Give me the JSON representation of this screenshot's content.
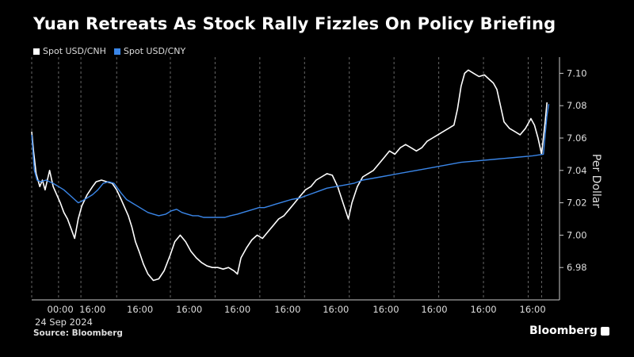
{
  "chart_data": {
    "type": "line",
    "title": "Yuan Retreats As Stock Rally Fizzles On Policy Briefing",
    "ylabel": "Per Dollar",
    "ylim": [
      6.96,
      7.11
    ],
    "y_ticks": [
      "6.98",
      "7.00",
      "7.02",
      "7.04",
      "7.06",
      "7.08",
      "7.10"
    ],
    "x_ticks": [
      "00:00",
      "16:00",
      "16:00",
      "16:00",
      "16:00",
      "16:00",
      "16:00",
      "16:00",
      "16:00",
      "16:00",
      "16:00"
    ],
    "x_date_label": "24 Sep 2024",
    "grid": true,
    "legend_position": "top-left",
    "series": [
      {
        "name": "Spot USD/CNH",
        "color": "#ffffff",
        "points": [
          [
            0,
            7.064
          ],
          [
            0.02,
            7.052
          ],
          [
            0.05,
            7.038
          ],
          [
            0.09,
            7.03
          ],
          [
            0.12,
            7.034
          ],
          [
            0.15,
            7.028
          ],
          [
            0.2,
            7.04
          ],
          [
            0.24,
            7.03
          ],
          [
            0.28,
            7.025
          ],
          [
            0.32,
            7.02
          ],
          [
            0.36,
            7.014
          ],
          [
            0.4,
            7.01
          ],
          [
            0.44,
            7.004
          ],
          [
            0.48,
            6.998
          ],
          [
            0.52,
            7.01
          ],
          [
            0.56,
            7.018
          ],
          [
            0.62,
            7.025
          ],
          [
            0.68,
            7.03
          ],
          [
            0.72,
            7.033
          ],
          [
            0.78,
            7.034
          ],
          [
            0.84,
            7.033
          ],
          [
            0.9,
            7.032
          ],
          [
            0.95,
            7.028
          ],
          [
            1.0,
            7.022
          ],
          [
            1.04,
            7.017
          ],
          [
            1.08,
            7.012
          ],
          [
            1.12,
            7.005
          ],
          [
            1.16,
            6.996
          ],
          [
            1.2,
            6.99
          ],
          [
            1.25,
            6.982
          ],
          [
            1.3,
            6.976
          ],
          [
            1.36,
            6.972
          ],
          [
            1.42,
            6.973
          ],
          [
            1.48,
            6.978
          ],
          [
            1.55,
            6.988
          ],
          [
            1.6,
            6.996
          ],
          [
            1.66,
            7.0
          ],
          [
            1.72,
            6.996
          ],
          [
            1.78,
            6.99
          ],
          [
            1.84,
            6.986
          ],
          [
            1.9,
            6.983
          ],
          [
            1.96,
            6.981
          ],
          [
            2.02,
            6.98
          ],
          [
            2.08,
            6.98
          ],
          [
            2.14,
            6.979
          ],
          [
            2.2,
            6.98
          ],
          [
            2.26,
            6.978
          ],
          [
            2.3,
            6.976
          ],
          [
            2.34,
            6.986
          ],
          [
            2.4,
            6.992
          ],
          [
            2.46,
            6.997
          ],
          [
            2.52,
            7.0
          ],
          [
            2.58,
            6.998
          ],
          [
            2.64,
            7.002
          ],
          [
            2.7,
            7.006
          ],
          [
            2.76,
            7.01
          ],
          [
            2.82,
            7.012
          ],
          [
            2.88,
            7.016
          ],
          [
            2.94,
            7.02
          ],
          [
            3.0,
            7.024
          ],
          [
            3.06,
            7.028
          ],
          [
            3.12,
            7.03
          ],
          [
            3.18,
            7.034
          ],
          [
            3.24,
            7.036
          ],
          [
            3.3,
            7.038
          ],
          [
            3.36,
            7.037
          ],
          [
            3.42,
            7.03
          ],
          [
            3.48,
            7.02
          ],
          [
            3.54,
            7.01
          ],
          [
            3.58,
            7.02
          ],
          [
            3.64,
            7.03
          ],
          [
            3.7,
            7.036
          ],
          [
            3.76,
            7.038
          ],
          [
            3.82,
            7.04
          ],
          [
            3.88,
            7.044
          ],
          [
            3.94,
            7.048
          ],
          [
            4.0,
            7.052
          ],
          [
            4.06,
            7.05
          ],
          [
            4.12,
            7.054
          ],
          [
            4.18,
            7.056
          ],
          [
            4.24,
            7.054
          ],
          [
            4.3,
            7.052
          ],
          [
            4.36,
            7.054
          ],
          [
            4.42,
            7.058
          ],
          [
            4.48,
            7.06
          ],
          [
            4.54,
            7.062
          ],
          [
            4.6,
            7.064
          ],
          [
            4.66,
            7.066
          ],
          [
            4.72,
            7.068
          ],
          [
            4.76,
            7.078
          ],
          [
            4.8,
            7.092
          ],
          [
            4.84,
            7.1
          ],
          [
            4.88,
            7.102
          ],
          [
            4.94,
            7.1
          ],
          [
            5.0,
            7.098
          ],
          [
            5.06,
            7.099
          ],
          [
            5.12,
            7.096
          ],
          [
            5.16,
            7.094
          ],
          [
            5.2,
            7.09
          ],
          [
            5.24,
            7.08
          ],
          [
            5.28,
            7.07
          ],
          [
            5.34,
            7.066
          ],
          [
            5.4,
            7.064
          ],
          [
            5.46,
            7.062
          ],
          [
            5.52,
            7.066
          ],
          [
            5.58,
            7.072
          ],
          [
            5.62,
            7.068
          ],
          [
            5.66,
            7.06
          ],
          [
            5.7,
            7.05
          ],
          [
            5.74,
            7.07
          ],
          [
            5.76,
            7.082
          ]
        ]
      },
      {
        "name": "Spot USD/CNY",
        "color": "#3a86e8",
        "points": [
          [
            0,
            7.062
          ],
          [
            0.03,
            7.04
          ],
          [
            0.06,
            7.034
          ],
          [
            0.1,
            7.033
          ],
          [
            0.16,
            7.034
          ],
          [
            0.2,
            7.033
          ],
          [
            0.24,
            7.032
          ],
          [
            0.3,
            7.03
          ],
          [
            0.36,
            7.028
          ],
          [
            0.42,
            7.025
          ],
          [
            0.48,
            7.022
          ],
          [
            0.52,
            7.02
          ],
          [
            0.56,
            7.021
          ],
          [
            0.62,
            7.023
          ],
          [
            0.68,
            7.025
          ],
          [
            0.74,
            7.028
          ],
          [
            0.8,
            7.032
          ],
          [
            0.86,
            7.033
          ],
          [
            0.92,
            7.032
          ],
          [
            1.0,
            7.026
          ],
          [
            1.06,
            7.022
          ],
          [
            1.12,
            7.02
          ],
          [
            1.18,
            7.018
          ],
          [
            1.24,
            7.016
          ],
          [
            1.3,
            7.014
          ],
          [
            1.36,
            7.013
          ],
          [
            1.42,
            7.012
          ],
          [
            1.5,
            7.013
          ],
          [
            1.56,
            7.015
          ],
          [
            1.62,
            7.016
          ],
          [
            1.68,
            7.014
          ],
          [
            1.74,
            7.013
          ],
          [
            1.8,
            7.012
          ],
          [
            1.86,
            7.012
          ],
          [
            1.92,
            7.011
          ],
          [
            1.98,
            7.011
          ],
          [
            2.04,
            7.011
          ],
          [
            2.1,
            7.011
          ],
          [
            2.16,
            7.011
          ],
          [
            2.22,
            7.012
          ],
          [
            2.3,
            7.013
          ],
          [
            2.36,
            7.014
          ],
          [
            2.42,
            7.015
          ],
          [
            2.48,
            7.016
          ],
          [
            2.54,
            7.017
          ],
          [
            2.6,
            7.017
          ],
          [
            2.66,
            7.018
          ],
          [
            2.72,
            7.019
          ],
          [
            2.78,
            7.02
          ],
          [
            2.84,
            7.021
          ],
          [
            2.9,
            7.022
          ],
          [
            3.0,
            7.023
          ],
          [
            3.1,
            7.025
          ],
          [
            3.2,
            7.027
          ],
          [
            3.3,
            7.029
          ],
          [
            3.4,
            7.03
          ],
          [
            3.5,
            7.031
          ],
          [
            3.6,
            7.032
          ],
          [
            3.7,
            7.034
          ],
          [
            3.8,
            7.035
          ],
          [
            3.9,
            7.036
          ],
          [
            4.0,
            7.037
          ],
          [
            4.2,
            7.039
          ],
          [
            4.4,
            7.041
          ],
          [
            4.6,
            7.043
          ],
          [
            4.8,
            7.045
          ],
          [
            5.0,
            7.046
          ],
          [
            5.2,
            7.047
          ],
          [
            5.4,
            7.048
          ],
          [
            5.6,
            7.049
          ],
          [
            5.72,
            7.05
          ],
          [
            5.74,
            7.062
          ],
          [
            5.76,
            7.074
          ],
          [
            5.78,
            7.081
          ]
        ]
      }
    ]
  },
  "footer": {
    "source": "Source: Bloomberg",
    "brand": "Bloomberg"
  }
}
